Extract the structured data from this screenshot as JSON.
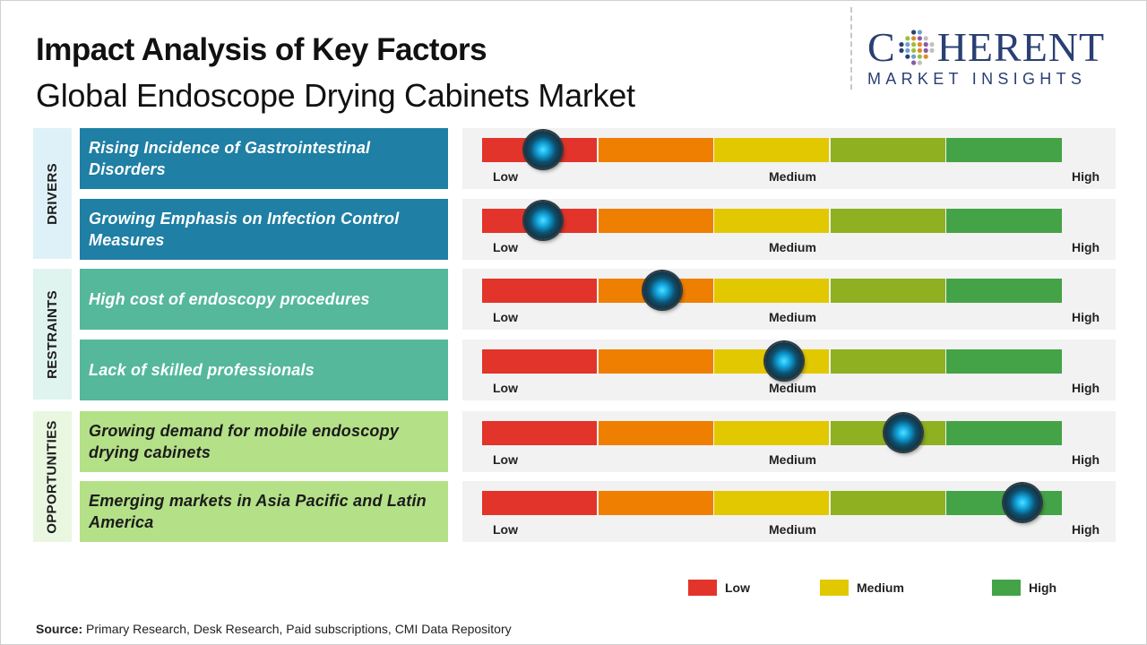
{
  "title": "Impact Analysis of Key Factors",
  "subtitle": "Global Endoscope Drying Cabinets Market",
  "logo": {
    "top_left": "C",
    "top_right": "HERENT",
    "bottom": "MARKET INSIGHTS"
  },
  "scale_labels": {
    "low": "Low",
    "medium": "Medium",
    "high": "High"
  },
  "segment_colors": [
    "#e2342a",
    "#ee7f00",
    "#e2c800",
    "#8eb021",
    "#44a346"
  ],
  "categories": [
    {
      "name": "DRIVERS",
      "color": "#dff1f8",
      "factor_color": "#1f7fa4",
      "text_color": "#ffffff"
    },
    {
      "name": "RESTRAINTS",
      "color": "#e0f4ef",
      "factor_color": "#55b89a",
      "text_color": "#ffffff"
    },
    {
      "name": "OPPORTUNITIES",
      "color": "#eaf7e0",
      "factor_color": "#b4e087",
      "text_color": "#1b1b1b"
    }
  ],
  "chart_data": {
    "type": "bar",
    "scale": [
      "Low",
      "Medium",
      "High"
    ],
    "scale_min": 0,
    "scale_max": 100,
    "factors": [
      {
        "category": "DRIVERS",
        "label": "Rising Incidence of Gastrointestinal Disorders",
        "impact": 10.5
      },
      {
        "category": "DRIVERS",
        "label": "Growing Emphasis on Infection Control Measures",
        "impact": 10.5
      },
      {
        "category": "RESTRAINTS",
        "label": "High cost of endoscopy procedures",
        "impact": 31
      },
      {
        "category": "RESTRAINTS",
        "label": "Lack of skilled professionals",
        "impact": 52
      },
      {
        "category": "OPPORTUNITIES",
        "label": "Growing demand for mobile endoscopy drying cabinets",
        "impact": 72.5
      },
      {
        "category": "OPPORTUNITIES",
        "label": "Emerging markets in Asia Pacific and Latin America",
        "impact": 93
      }
    ],
    "legend": [
      {
        "label": "Low",
        "color": "#e2342a"
      },
      {
        "label": "Medium",
        "color": "#e2c800"
      },
      {
        "label": "High",
        "color": "#44a346"
      }
    ]
  },
  "source": {
    "prefix": "Source:",
    "text": " Primary Research, Desk Research, Paid subscriptions, CMI Data Repository"
  }
}
